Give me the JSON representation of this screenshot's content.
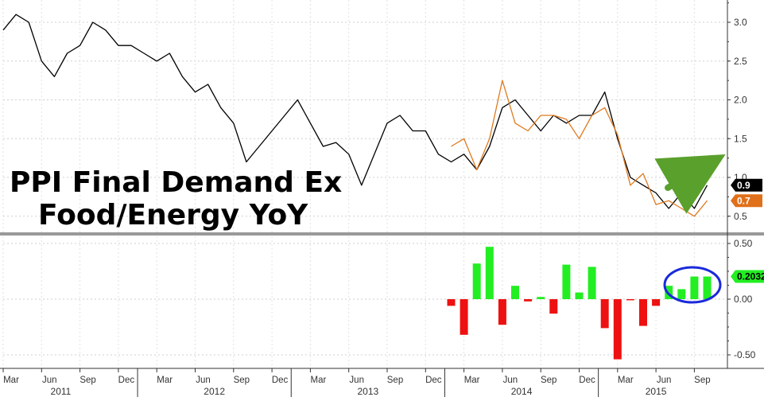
{
  "chart_data": [
    {
      "type": "line",
      "title": "PPI Final Demand Ex Food/Energy YoY",
      "title_lines": [
        "PPI Final Demand Ex",
        "Food/Energy YoY"
      ],
      "ylim": [
        0.2,
        3.3
      ],
      "yticks": [
        "3.0",
        "2.5",
        "2.0",
        "1.5",
        "1.0",
        "0.5"
      ],
      "grid": true,
      "series": [
        {
          "color": "#000000",
          "x": [
            0,
            1,
            2,
            3,
            4,
            5,
            6,
            7,
            8,
            9,
            10,
            11,
            12,
            13,
            14,
            15,
            16,
            17,
            18,
            19,
            20,
            21,
            22,
            23,
            24,
            25,
            26,
            27,
            28,
            29,
            30,
            31,
            32,
            33,
            34,
            35,
            36,
            37,
            38,
            39,
            40,
            41,
            42,
            43,
            44,
            45,
            46,
            47,
            48,
            49,
            50,
            51,
            52,
            53,
            54,
            55
          ],
          "values": [
            2.9,
            3.1,
            3.0,
            2.5,
            2.3,
            2.6,
            2.7,
            3.0,
            2.9,
            2.7,
            2.7,
            2.6,
            2.5,
            2.6,
            2.3,
            2.1,
            2.2,
            1.9,
            1.7,
            1.2,
            1.4,
            1.6,
            1.8,
            2.0,
            1.7,
            1.4,
            1.45,
            1.3,
            0.9,
            1.3,
            1.7,
            1.8,
            1.6,
            1.6,
            1.3,
            1.2,
            1.3,
            1.1,
            1.4,
            1.9,
            2.0,
            1.8,
            1.6,
            1.8,
            1.7,
            1.8,
            1.8,
            2.1,
            1.5,
            1.0,
            0.9,
            0.8,
            0.6,
            0.8,
            0.6,
            0.9
          ],
          "last_label": "0.9"
        },
        {
          "color": "#e07a1f",
          "x": [
            35,
            36,
            37,
            38,
            39,
            40,
            41,
            42,
            43,
            44,
            45,
            46,
            47,
            48,
            49,
            50,
            51,
            52,
            53,
            54,
            55
          ],
          "values": [
            1.4,
            1.5,
            1.1,
            1.5,
            2.25,
            1.7,
            1.6,
            1.8,
            1.8,
            1.75,
            1.5,
            1.8,
            1.9,
            1.55,
            0.9,
            1.05,
            0.65,
            0.7,
            0.6,
            0.5,
            0.7
          ],
          "last_label": "0.7"
        }
      ],
      "annotation": {
        "type": "arrow",
        "color": "#5aa02c"
      }
    },
    {
      "type": "bar",
      "ylim": [
        -0.55,
        0.55
      ],
      "yticks": [
        "0.50",
        "0.00",
        "-0.50"
      ],
      "grid": true,
      "x": [
        35,
        36,
        37,
        38,
        39,
        40,
        41,
        42,
        43,
        44,
        45,
        46,
        47,
        48,
        49,
        50,
        51,
        52,
        53,
        54,
        55
      ],
      "values": [
        -0.06,
        -0.32,
        0.32,
        0.47,
        -0.23,
        0.12,
        -0.02,
        0.02,
        -0.13,
        0.31,
        0.06,
        0.29,
        -0.26,
        -0.54,
        -0.01,
        -0.24,
        -0.06,
        0.12,
        0.09,
        0.2032,
        0.2032
      ],
      "positive_color": "#22ee22",
      "negative_color": "#ee1111",
      "last_label": "0.2032",
      "annotation": {
        "type": "ellipse",
        "color": "#1a2adb"
      }
    }
  ],
  "x_axis": {
    "month_labels": [
      "Mar",
      "Jun",
      "Sep",
      "Dec",
      "Mar",
      "Jun",
      "Sep",
      "Dec",
      "Mar",
      "Jun",
      "Sep",
      "Dec",
      "Mar",
      "Jun",
      "Sep",
      "Dec",
      "Mar",
      "Jun",
      "Sep"
    ],
    "month_index": [
      0,
      3,
      6,
      9,
      12,
      15,
      18,
      21,
      24,
      27,
      30,
      33,
      36,
      39,
      42,
      45,
      48,
      51,
      54
    ],
    "years": [
      {
        "label": "2011",
        "center": 4.5
      },
      {
        "label": "2012",
        "center": 16.5
      },
      {
        "label": "2013",
        "center": 28.5
      },
      {
        "label": "2014",
        "center": 40.5
      },
      {
        "label": "2015",
        "center": 51
      }
    ],
    "year_separators": [
      10.5,
      22.5,
      34.5,
      46.5
    ]
  }
}
